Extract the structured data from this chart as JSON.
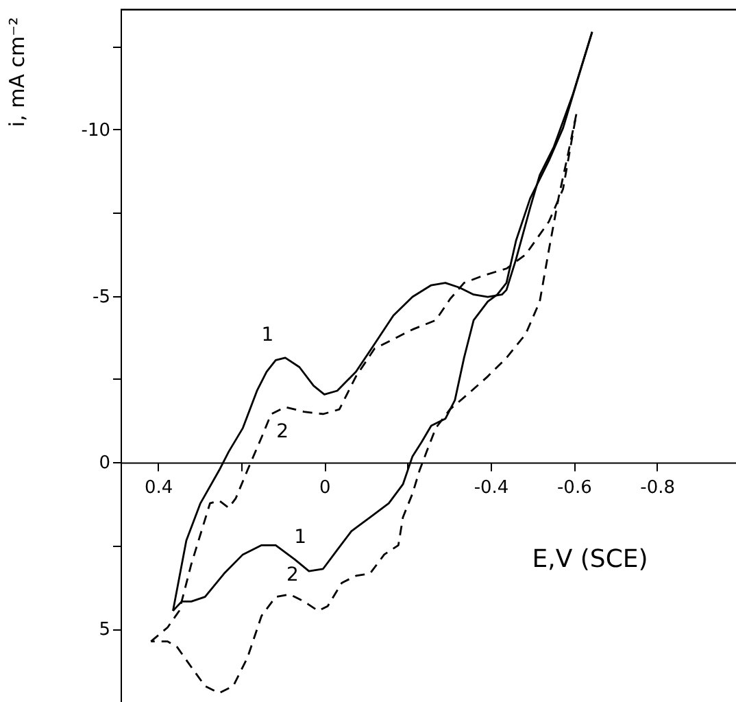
{
  "chart_data": {
    "type": "line",
    "xlabel": "E,V (SCE)",
    "ylabel": "i, mA cm⁻²",
    "xlim": [
      0.49,
      -0.99
    ],
    "ylim": [
      7.2,
      -13.6
    ],
    "xticks": [
      0.4,
      {
        "value": 0.2,
        "label": null
      },
      0,
      {
        "value": -0.2,
        "label": null
      },
      -0.4,
      -0.6,
      -0.8
    ],
    "yticks": [
      {
        "value": -12.5,
        "label": null
      },
      -10,
      {
        "value": -7.5,
        "label": null
      },
      -5,
      {
        "value": -2.5,
        "label": null
      },
      0,
      {
        "value": 2.5,
        "label": null
      },
      5
    ],
    "grid": false,
    "marker": "none",
    "series": [
      {
        "color": "#000000",
        "line_style": "solid",
        "x": [
          0.364,
          0.332,
          0.298,
          0.253,
          0.23,
          0.196,
          0.162,
          0.139,
          0.117,
          0.094,
          0.06,
          0.026,
          0,
          -0.031,
          -0.076,
          -0.121,
          -0.166,
          -0.212,
          -0.257,
          -0.291,
          -0.325,
          -0.359,
          -0.393,
          -0.427,
          -0.438,
          -0.461,
          -0.495,
          -0.518,
          -0.552,
          -0.597,
          -0.644
        ],
        "values": [
          4.46,
          2.35,
          1.23,
          0.24,
          -0.32,
          -1.03,
          -2.15,
          -2.72,
          -3.07,
          -3.14,
          -2.86,
          -2.3,
          -2.04,
          -2.15,
          -2.72,
          -3.56,
          -4.41,
          -4.97,
          -5.32,
          -5.39,
          -5.25,
          -5.04,
          -4.97,
          -5.04,
          -5.18,
          -6.1,
          -7.65,
          -8.63,
          -9.48,
          -11.03,
          -12.93
        ]
      },
      {
        "color": "#000000",
        "line_style": "solid",
        "x": [
          -0.644,
          -0.608,
          -0.574,
          -0.54,
          -0.495,
          -0.461,
          -0.438,
          -0.416,
          -0.393,
          -0.359,
          -0.336,
          -0.314,
          -0.291,
          -0.257,
          -0.234,
          -0.212,
          -0.189,
          -0.155,
          -0.11,
          -0.065,
          -0.031,
          0.003,
          0.037,
          0.071,
          0.117,
          0.151,
          0.196,
          0.241,
          0.287,
          0.32,
          0.343,
          0.364
        ],
        "values": [
          -12.93,
          -11.45,
          -10.04,
          -9.06,
          -7.93,
          -6.66,
          -5.39,
          -5.04,
          -4.83,
          -4.27,
          -3.14,
          -1.87,
          -1.31,
          -1.1,
          -0.61,
          -0.18,
          0.66,
          1.23,
          1.65,
          2.07,
          2.63,
          3.2,
          3.27,
          2.92,
          2.49,
          2.49,
          2.77,
          3.34,
          4.04,
          4.18,
          4.18,
          4.46
        ]
      },
      {
        "color": "#000000",
        "line_style": "dashed",
        "x": [
          0.417,
          0.377,
          0.349,
          0.32,
          0.275,
          0.253,
          0.23,
          0.213,
          0.185,
          0.151,
          0.128,
          0.094,
          0.049,
          0.003,
          -0.036,
          -0.076,
          -0.121,
          -0.166,
          -0.212,
          -0.268,
          -0.302,
          -0.336,
          -0.382,
          -0.438,
          -0.484,
          -0.54,
          -0.574,
          -0.606
        ],
        "values": [
          5.38,
          4.96,
          4.46,
          3.06,
          1.23,
          1.15,
          1.37,
          1.08,
          0.24,
          -0.75,
          -1.45,
          -1.66,
          -1.52,
          -1.45,
          -1.59,
          -2.58,
          -3.42,
          -3.7,
          -3.99,
          -4.27,
          -4.9,
          -5.39,
          -5.61,
          -5.82,
          -6.24,
          -7.23,
          -8.21,
          -10.46
        ]
      },
      {
        "color": "#000000",
        "line_style": "dashed",
        "x": [
          -0.606,
          -0.585,
          -0.563,
          -0.54,
          -0.518,
          -0.484,
          -0.438,
          -0.393,
          -0.348,
          -0.302,
          -0.268,
          -0.246,
          -0.229,
          -0.212,
          -0.189,
          -0.178,
          -0.144,
          -0.11,
          -0.076,
          -0.042,
          -0.008,
          0.015,
          0.049,
          0.083,
          0.117,
          0.151,
          0.185,
          0.219,
          0.253,
          0.287,
          0.32,
          0.354,
          0.377,
          0.417
        ],
        "values": [
          -10.46,
          -9.2,
          -7.93,
          -6.38,
          -4.83,
          -3.85,
          -3.14,
          -2.58,
          -2.08,
          -1.59,
          -1.03,
          -0.32,
          0.24,
          0.94,
          1.65,
          2.49,
          2.77,
          3.34,
          3.41,
          3.62,
          4.32,
          4.46,
          4.18,
          3.97,
          4.04,
          4.61,
          5.87,
          6.72,
          6.93,
          6.72,
          6.15,
          5.55,
          5.38,
          5.38
        ]
      }
    ],
    "annotations": [
      {
        "text": "1",
        "x": 0.117,
        "y": -3.07
      },
      {
        "text": "2",
        "x": 0.094,
        "y": -1.66
      },
      {
        "text": "1",
        "x": 0.071,
        "y": 2.92
      },
      {
        "text": "2",
        "x": 0.083,
        "y": 3.97
      }
    ]
  }
}
